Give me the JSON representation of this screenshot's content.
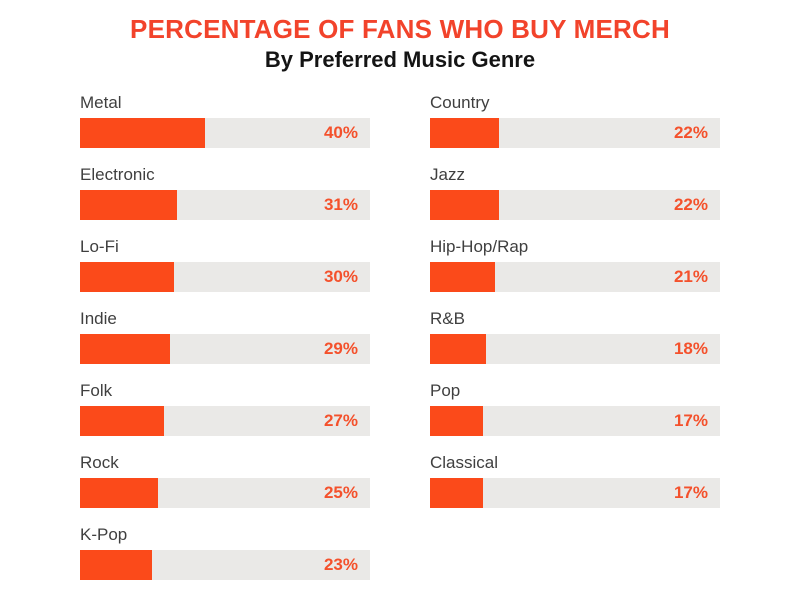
{
  "header": {
    "title": "PERCENTAGE OF FANS WHO BUY MERCH",
    "subtitle": "By Preferred Music Genre"
  },
  "colors": {
    "background": "#FFFFFF",
    "title_text": "#F2432B",
    "subtitle_text": "#141414",
    "bar_fill": "#FB4A1A",
    "bar_track": "#EAE9E7",
    "percent_text": "#F4512C",
    "genre_label_text": "#3F3F3F"
  },
  "chart_data": {
    "type": "bar",
    "orientation": "horizontal",
    "title": "PERCENTAGE OF FANS WHO BUY MERCH",
    "subtitle": "By Preferred Music Genre",
    "unit": "%",
    "value_label_position": "inside-right",
    "grid": false,
    "legend": false,
    "bar_scale_max": 93,
    "columns": [
      {
        "name": "left",
        "items": [
          {
            "label": "Metal",
            "value": 40
          },
          {
            "label": "Electronic",
            "value": 31
          },
          {
            "label": "Lo-Fi",
            "value": 30
          },
          {
            "label": "Indie",
            "value": 29
          },
          {
            "label": "Folk",
            "value": 27
          },
          {
            "label": "Rock",
            "value": 25
          },
          {
            "label": "K-Pop",
            "value": 23
          }
        ]
      },
      {
        "name": "right",
        "items": [
          {
            "label": "Country",
            "value": 22
          },
          {
            "label": "Jazz",
            "value": 22
          },
          {
            "label": "Hip-Hop/Rap",
            "value": 21
          },
          {
            "label": "R&B",
            "value": 18
          },
          {
            "label": "Pop",
            "value": 17
          },
          {
            "label": "Classical",
            "value": 17
          }
        ]
      }
    ]
  }
}
